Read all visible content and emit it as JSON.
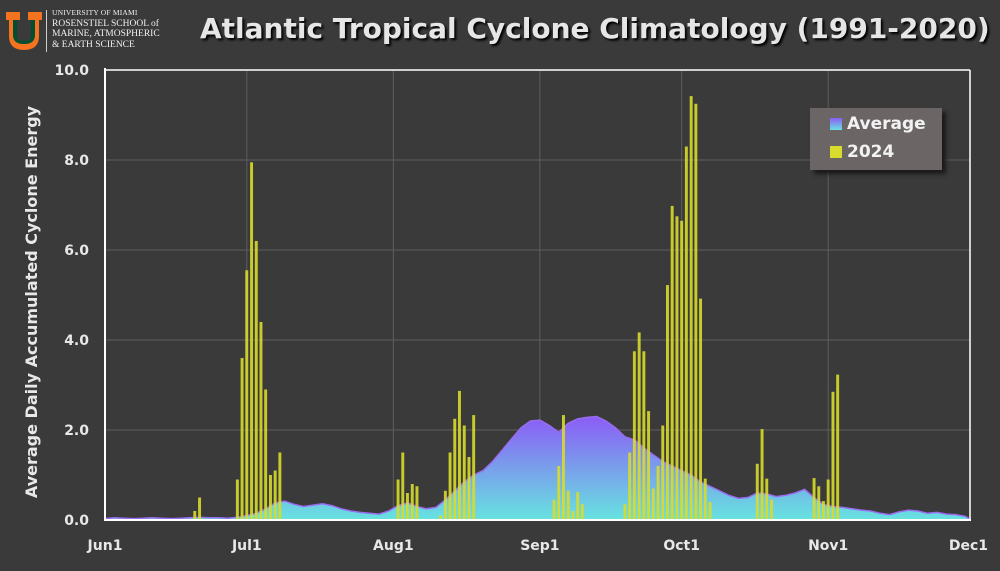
{
  "header": {
    "logo": {
      "line1": "UNIVERSITY OF MIAMI",
      "line2": "ROSENSTIEL SCHOOL of",
      "line3": "MARINE, ATMOSPHERIC",
      "line4": "& EARTH SCIENCE"
    }
  },
  "chart_data": {
    "type": "bar",
    "title": "Atlantic Tropical Cyclone Climatology (1991-2020)",
    "xlabel": "",
    "ylabel": "Average Daily Accumulated Cyclone Energy",
    "ylim": [
      0,
      10
    ],
    "y_ticks": [
      "0.0",
      "2.0",
      "4.0",
      "6.0",
      "8.0",
      "10.0"
    ],
    "x_ticks": [
      {
        "label": "Jun1",
        "day": 0
      },
      {
        "label": "Jul1",
        "day": 30
      },
      {
        "label": "Aug1",
        "day": 61
      },
      {
        "label": "Sep1",
        "day": 92
      },
      {
        "label": "Oct1",
        "day": 122
      },
      {
        "label": "Nov1",
        "day": 153
      },
      {
        "label": "Dec1",
        "day": 183
      }
    ],
    "grid": true,
    "legend_position": "top-right",
    "colors": {
      "average_top": "#8b5cf6",
      "average_bottom": "#67e3e0",
      "bars_2024": "#d8dc2a",
      "background": "#3a3a3a",
      "grid": "#5e5e5e"
    },
    "series": [
      {
        "name": "Average",
        "kind": "area",
        "x": [
          0,
          2,
          4,
          6,
          8,
          10,
          12,
          14,
          16,
          18,
          20,
          22,
          24,
          26,
          28,
          30,
          32,
          34,
          36,
          38,
          40,
          42,
          44,
          46,
          48,
          50,
          52,
          54,
          56,
          58,
          60,
          62,
          64,
          66,
          68,
          70,
          72,
          74,
          76,
          78,
          80,
          82,
          84,
          86,
          88,
          90,
          92,
          94,
          96,
          98,
          100,
          102,
          104,
          106,
          108,
          110,
          112,
          114,
          116,
          118,
          120,
          122,
          124,
          126,
          128,
          130,
          132,
          134,
          136,
          138,
          140,
          142,
          144,
          146,
          148,
          150,
          152,
          154,
          156,
          158,
          160,
          162,
          164,
          166,
          168,
          170,
          172,
          174,
          176,
          178,
          180,
          182,
          183
        ],
        "values": [
          0.03,
          0.05,
          0.04,
          0.03,
          0.04,
          0.05,
          0.04,
          0.03,
          0.04,
          0.05,
          0.06,
          0.05,
          0.05,
          0.04,
          0.06,
          0.1,
          0.15,
          0.25,
          0.38,
          0.42,
          0.35,
          0.3,
          0.33,
          0.36,
          0.32,
          0.25,
          0.2,
          0.17,
          0.15,
          0.13,
          0.2,
          0.32,
          0.38,
          0.3,
          0.25,
          0.28,
          0.45,
          0.65,
          0.85,
          1.0,
          1.1,
          1.3,
          1.55,
          1.8,
          2.05,
          2.2,
          2.22,
          2.1,
          1.95,
          2.15,
          2.25,
          2.28,
          2.3,
          2.2,
          2.05,
          1.85,
          1.78,
          1.6,
          1.45,
          1.3,
          1.2,
          1.1,
          1.0,
          0.85,
          0.75,
          0.65,
          0.55,
          0.48,
          0.5,
          0.6,
          0.58,
          0.52,
          0.55,
          0.6,
          0.68,
          0.5,
          0.35,
          0.3,
          0.28,
          0.25,
          0.22,
          0.2,
          0.15,
          0.12,
          0.18,
          0.22,
          0.2,
          0.15,
          0.17,
          0.13,
          0.12,
          0.08,
          0.02
        ]
      },
      {
        "name": "2024",
        "kind": "bar",
        "x": [
          19,
          20,
          28,
          29,
          30,
          31,
          32,
          33,
          34,
          35,
          36,
          37,
          38,
          62,
          63,
          64,
          65,
          66,
          71,
          72,
          73,
          74,
          75,
          76,
          77,
          78,
          79,
          80,
          81,
          82,
          83,
          84,
          85,
          86,
          87,
          88,
          89,
          90,
          95,
          96,
          97,
          98,
          99,
          100,
          101,
          102,
          110,
          111,
          112,
          113,
          114,
          115,
          116,
          117,
          118,
          119,
          120,
          121,
          122,
          123,
          124,
          125,
          126,
          127,
          128,
          129,
          130,
          131,
          132,
          133,
          134,
          138,
          139,
          140,
          141,
          150,
          151,
          152,
          153,
          154,
          155,
          156,
          157
        ],
        "values": [
          0.2,
          0.5,
          0.9,
          3.6,
          5.55,
          7.95,
          6.2,
          4.4,
          2.9,
          1.0,
          1.1,
          1.5,
          0.0,
          0.9,
          1.5,
          0.6,
          0.8,
          0.75,
          0.1,
          0.65,
          1.5,
          2.25,
          2.87,
          2.1,
          1.4,
          2.33,
          0.0,
          0.0,
          0.0,
          0.0,
          0.0,
          0.0,
          0.0,
          0.0,
          0.0,
          0.0,
          0.0,
          0.0,
          0.45,
          1.2,
          2.33,
          0.65,
          0.2,
          0.62,
          0.35,
          0.0,
          0.35,
          1.5,
          3.75,
          4.17,
          3.75,
          2.42,
          0.7,
          1.2,
          2.1,
          5.22,
          6.98,
          6.75,
          6.65,
          8.3,
          9.42,
          9.25,
          4.92,
          0.92,
          0.4,
          0.0,
          0.0,
          0.0,
          0.0,
          0.0,
          0.0,
          1.25,
          2.02,
          0.92,
          0.45,
          0.93,
          0.75,
          0.42,
          0.9,
          2.85,
          3.23,
          0.0,
          0.0
        ]
      }
    ]
  }
}
